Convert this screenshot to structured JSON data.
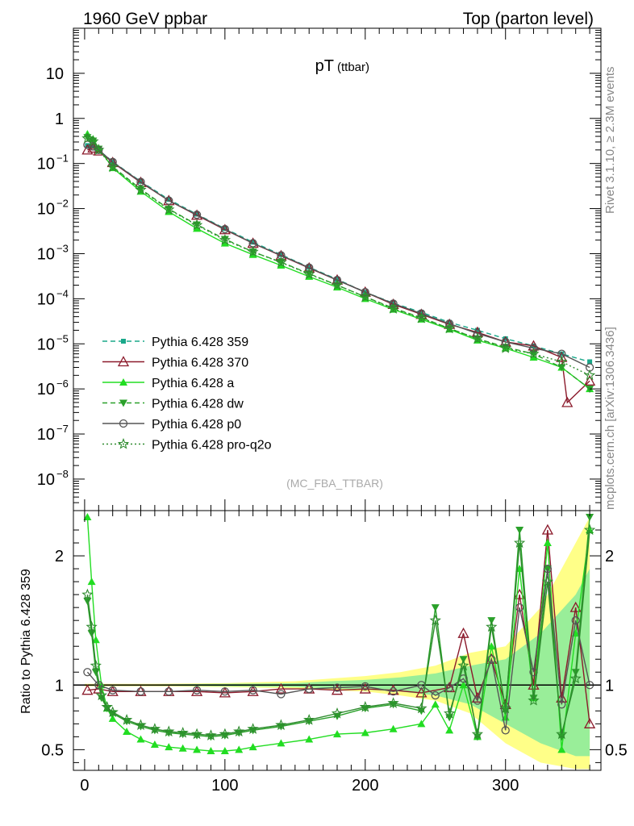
{
  "header": {
    "left": "1960 GeV ppbar",
    "right": "Top (parton level)"
  },
  "side_labels": {
    "rivet": "Rivet 3.1.10, ≥ 2.3M events",
    "mcplots": "mcplots.cern.ch [arXiv:1306.3436]"
  },
  "chart_data": [
    {
      "type": "scatter",
      "title_main": "pT",
      "title_sub": "(ttbar)",
      "watermark": "(MC_FBA_TTBAR)",
      "y_scale": "log",
      "ylim": [
        2e-09,
        100
      ],
      "xlim": [
        -8,
        368
      ],
      "yticks": [
        {
          "v": 10,
          "label": "10"
        },
        {
          "v": 1,
          "label": "1"
        },
        {
          "v": 0.1,
          "label": "10",
          "exp": "−1"
        },
        {
          "v": 0.01,
          "label": "10",
          "exp": "−2"
        },
        {
          "v": 0.001,
          "label": "10",
          "exp": "−3"
        },
        {
          "v": 0.0001,
          "label": "10",
          "exp": "−4"
        },
        {
          "v": 1e-05,
          "label": "10",
          "exp": "−5"
        },
        {
          "v": 1e-06,
          "label": "10",
          "exp": "−6"
        },
        {
          "v": 1e-07,
          "label": "10",
          "exp": "−7"
        },
        {
          "v": 1e-08,
          "label": "10",
          "exp": "−8"
        }
      ],
      "legend_position": "lower-left",
      "series": [
        {
          "name": "Pythia 6.428 359",
          "color": "#1aa88a",
          "marker": "square",
          "line": "dashed",
          "x": [
            2,
            6,
            10,
            20,
            40,
            60,
            80,
            100,
            120,
            140,
            160,
            180,
            200,
            220,
            240,
            260,
            280,
            300,
            320,
            340,
            360
          ],
          "y": [
            0.25,
            0.24,
            0.2,
            0.11,
            0.04,
            0.016,
            0.0075,
            0.0036,
            0.0018,
            0.00095,
            0.0005,
            0.00027,
            0.00014,
            8e-05,
            5e-05,
            3e-05,
            2e-05,
            1.3e-05,
            9e-06,
            6e-06,
            4e-06
          ]
        },
        {
          "name": "Pythia 6.428 370",
          "color": "#8b1a2b",
          "marker": "triangle-open",
          "line": "solid",
          "x": [
            2,
            6,
            10,
            20,
            40,
            60,
            80,
            100,
            120,
            140,
            160,
            180,
            200,
            220,
            240,
            260,
            280,
            300,
            320,
            340,
            344,
            360
          ],
          "y": [
            0.2,
            0.22,
            0.19,
            0.105,
            0.038,
            0.015,
            0.0071,
            0.0034,
            0.0017,
            0.0009,
            0.00048,
            0.00026,
            0.00014,
            7.5e-05,
            4.5e-05,
            2.7e-05,
            1.8e-05,
            1.1e-05,
            9e-06,
            5e-06,
            5e-07,
            1.5e-06
          ]
        },
        {
          "name": "Pythia 6.428 a",
          "color": "#22dd22",
          "marker": "triangle",
          "line": "solid",
          "x": [
            2,
            6,
            10,
            20,
            40,
            60,
            80,
            100,
            120,
            140,
            160,
            180,
            200,
            220,
            240,
            260,
            280,
            300,
            320,
            340,
            360
          ],
          "y": [
            0.45,
            0.35,
            0.22,
            0.08,
            0.024,
            0.0085,
            0.0036,
            0.0017,
            0.00095,
            0.00055,
            0.00031,
            0.00018,
            0.0001,
            5.8e-05,
            3.5e-05,
            2.1e-05,
            1.2e-05,
            8e-06,
            5e-06,
            3e-06,
            1e-06
          ]
        },
        {
          "name": "Pythia 6.428 dw",
          "color": "#2aa02a",
          "marker": "triangle-down",
          "line": "dashed",
          "x": [
            2,
            6,
            10,
            20,
            40,
            60,
            80,
            100,
            120,
            140,
            160,
            180,
            200,
            220,
            240,
            260,
            280,
            300,
            320,
            340,
            360
          ],
          "y": [
            0.38,
            0.32,
            0.21,
            0.085,
            0.027,
            0.0098,
            0.0044,
            0.0021,
            0.0011,
            0.00065,
            0.00036,
            0.0002,
            0.00011,
            6.2e-05,
            3.8e-05,
            2.2e-05,
            1.3e-05,
            8.5e-06,
            6e-06,
            3e-06,
            1e-06
          ]
        },
        {
          "name": "Pythia 6.428 p0",
          "color": "#555555",
          "marker": "circle-open",
          "line": "solid",
          "x": [
            2,
            6,
            10,
            20,
            40,
            60,
            80,
            100,
            120,
            140,
            160,
            180,
            200,
            220,
            240,
            260,
            280,
            300,
            320,
            340,
            360
          ],
          "y": [
            0.26,
            0.24,
            0.2,
            0.108,
            0.039,
            0.015,
            0.0073,
            0.0035,
            0.0017,
            0.00092,
            0.00049,
            0.00026,
            0.00014,
            7.8e-05,
            4.7e-05,
            2.8e-05,
            1.7e-05,
            1.1e-05,
            8e-06,
            6e-06,
            3e-06
          ]
        },
        {
          "name": "Pythia 6.428 pro-q2o",
          "color": "#2e8b2e",
          "marker": "star-open",
          "line": "dotted",
          "x": [
            2,
            6,
            10,
            20,
            40,
            60,
            80,
            100,
            120,
            140,
            160,
            180,
            200,
            220,
            240,
            260,
            280,
            300,
            320,
            340,
            360
          ],
          "y": [
            0.36,
            0.31,
            0.2,
            0.083,
            0.026,
            0.0095,
            0.0043,
            0.002,
            0.0011,
            0.00064,
            0.00035,
            0.0002,
            0.00011,
            6e-05,
            3.7e-05,
            2.2e-05,
            1.3e-05,
            8e-06,
            6e-06,
            4e-06,
            2e-06
          ]
        }
      ]
    },
    {
      "type": "line",
      "ylabel": "Ratio to Pythia 6.428 359",
      "xlim": [
        -8,
        368
      ],
      "ylim": [
        0.34,
        2.35
      ],
      "xticks": [
        0,
        100,
        200,
        300
      ],
      "yticks": [
        0.5,
        1,
        2
      ],
      "band": {
        "x": [
          0,
          50,
          100,
          150,
          175,
          200,
          225,
          250,
          275,
          300,
          325,
          350,
          360
        ],
        "yellow_lo": [
          0.99,
          0.99,
          0.985,
          0.975,
          0.96,
          0.95,
          0.92,
          0.88,
          0.78,
          0.55,
          0.4,
          0.35,
          0.35
        ],
        "yellow_hi": [
          1.01,
          1.01,
          1.015,
          1.03,
          1.05,
          1.07,
          1.1,
          1.15,
          1.25,
          1.3,
          1.6,
          2.1,
          2.3
        ],
        "green_lo": [
          0.995,
          0.995,
          0.99,
          0.985,
          0.975,
          0.965,
          0.95,
          0.92,
          0.85,
          0.7,
          0.55,
          0.45,
          0.45
        ],
        "green_hi": [
          1.005,
          1.005,
          1.01,
          1.015,
          1.03,
          1.04,
          1.06,
          1.09,
          1.15,
          1.2,
          1.4,
          1.7,
          1.9
        ]
      },
      "series": [
        {
          "name": "Pythia 6.428 370",
          "color": "#8b1a2b",
          "x": [
            2,
            10,
            20,
            40,
            60,
            80,
            100,
            120,
            140,
            160,
            180,
            200,
            220,
            240,
            260,
            270,
            280,
            290,
            300,
            310,
            320,
            330,
            340,
            350,
            360
          ],
          "y": [
            0.96,
            0.97,
            0.95,
            0.95,
            0.95,
            0.95,
            0.94,
            0.95,
            0.97,
            0.97,
            0.96,
            0.97,
            0.96,
            0.94,
            0.98,
            1.4,
            0.9,
            1.2,
            0.85,
            1.7,
            1.0,
            2.2,
            0.9,
            1.6,
            0.7
          ]
        },
        {
          "name": "Pythia 6.428 a",
          "color": "#22dd22",
          "x": [
            2,
            5,
            8,
            12,
            16,
            20,
            30,
            40,
            50,
            60,
            70,
            80,
            90,
            100,
            110,
            120,
            140,
            160,
            180,
            200,
            220,
            240,
            250,
            260,
            270,
            280,
            290,
            300,
            310,
            320,
            330,
            340,
            350,
            360
          ],
          "y": [
            2.3,
            1.8,
            1.35,
            1.0,
            0.82,
            0.74,
            0.64,
            0.58,
            0.54,
            0.52,
            0.51,
            0.5,
            0.49,
            0.49,
            0.5,
            0.52,
            0.55,
            0.58,
            0.62,
            0.63,
            0.66,
            0.7,
            0.85,
            0.65,
            1.0,
            0.6,
            1.3,
            0.75,
            1.9,
            0.9,
            2.1,
            0.5,
            1.4,
            2.2
          ]
        },
        {
          "name": "Pythia 6.428 dw",
          "color": "#2aa02a",
          "x": [
            2,
            5,
            8,
            12,
            16,
            20,
            30,
            40,
            50,
            60,
            70,
            80,
            90,
            100,
            110,
            120,
            140,
            160,
            180,
            200,
            220,
            240,
            250,
            260,
            270,
            280,
            290,
            300,
            310,
            320,
            330,
            340,
            350,
            360
          ],
          "y": [
            1.65,
            1.4,
            1.1,
            0.9,
            0.82,
            0.78,
            0.72,
            0.68,
            0.65,
            0.63,
            0.62,
            0.61,
            0.6,
            0.61,
            0.63,
            0.65,
            0.68,
            0.72,
            0.76,
            0.82,
            0.85,
            0.8,
            1.6,
            0.75,
            1.2,
            0.6,
            1.5,
            0.8,
            2.2,
            0.9,
            1.9,
            0.6,
            1.1,
            2.3
          ]
        },
        {
          "name": "Pythia 6.428 p0",
          "color": "#555555",
          "x": [
            2,
            10,
            20,
            40,
            60,
            80,
            100,
            120,
            140,
            160,
            180,
            200,
            220,
            240,
            250,
            260,
            270,
            280,
            290,
            300,
            310,
            320,
            330,
            340,
            350,
            360
          ],
          "y": [
            1.1,
            1.0,
            0.96,
            0.95,
            0.95,
            0.96,
            0.95,
            0.96,
            0.93,
            0.97,
            0.98,
            0.99,
            0.95,
            1.0,
            0.92,
            0.98,
            1.05,
            0.88,
            1.2,
            0.65,
            1.6,
            1.1,
            1.9,
            0.85,
            1.5,
            1.0
          ]
        },
        {
          "name": "Pythia 6.428 pro-q2o",
          "color": "#2e8b2e",
          "x": [
            2,
            5,
            8,
            12,
            16,
            20,
            30,
            40,
            50,
            60,
            70,
            80,
            90,
            100,
            110,
            120,
            140,
            160,
            180,
            200,
            220,
            240,
            250,
            260,
            270,
            280,
            290,
            300,
            310,
            320,
            330,
            340,
            350,
            360
          ],
          "y": [
            1.7,
            1.45,
            1.15,
            0.92,
            0.83,
            0.79,
            0.73,
            0.69,
            0.66,
            0.64,
            0.63,
            0.62,
            0.61,
            0.62,
            0.64,
            0.66,
            0.69,
            0.73,
            0.78,
            0.83,
            0.86,
            0.82,
            1.5,
            0.78,
            1.15,
            0.62,
            1.45,
            0.82,
            2.1,
            0.88,
            1.8,
            0.62,
            1.05,
            2.2
          ]
        }
      ]
    }
  ]
}
